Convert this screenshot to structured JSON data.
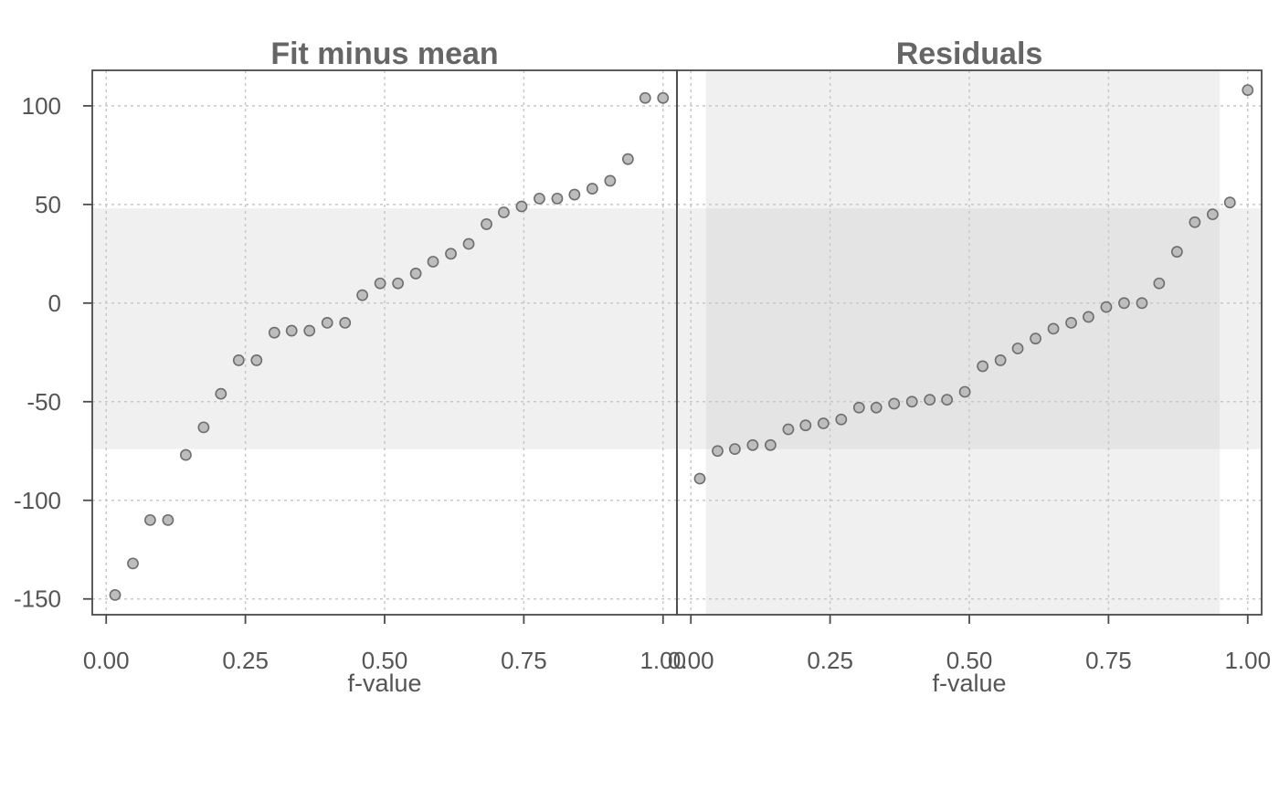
{
  "chart_data": [
    {
      "type": "scatter",
      "title": "Fit minus mean",
      "xlabel": "f-value",
      "ylabel": "",
      "xlim": [
        -0.025,
        1.025
      ],
      "ylim": [
        -158,
        118
      ],
      "xticks": [
        "0.00",
        "0.25",
        "0.50",
        "0.75",
        "1.00"
      ],
      "yticks": [
        "100",
        "50",
        "0",
        "-50",
        "-100",
        "-150"
      ],
      "grid": true,
      "point_color": "#bdbdbd",
      "band_color": "#f0f0f0",
      "band_y": [
        -74,
        48
      ],
      "x": [
        0.016,
        0.048,
        0.079,
        0.111,
        0.143,
        0.175,
        0.206,
        0.238,
        0.27,
        0.302,
        0.333,
        0.365,
        0.397,
        0.429,
        0.46,
        0.492,
        0.524,
        0.556,
        0.587,
        0.619,
        0.651,
        0.683,
        0.714,
        0.746,
        0.778,
        0.81,
        0.841,
        0.873,
        0.905,
        0.937,
        0.968,
        1.0
      ],
      "values": [
        -148,
        -132,
        -110,
        -110,
        -77,
        -63,
        -46,
        -29,
        -29,
        -15,
        -14,
        -14,
        -10,
        -10,
        4,
        10,
        10,
        15,
        21,
        25,
        30,
        40,
        46,
        49,
        53,
        53,
        55,
        58,
        62,
        73,
        104,
        104
      ]
    },
    {
      "type": "scatter",
      "title": "Residuals",
      "xlabel": "f-value",
      "ylabel": "",
      "xlim": [
        -0.025,
        1.025
      ],
      "ylim": [
        -158,
        118
      ],
      "xticks": [
        "0.00",
        "0.25",
        "0.50",
        "0.75",
        "1.00"
      ],
      "grid": true,
      "point_color": "#bdbdbd",
      "band_color": "#f0f0f0",
      "band_x": [
        0.027,
        0.95
      ],
      "overlap_color": "#e4e4e4",
      "x": [
        0.016,
        0.048,
        0.079,
        0.111,
        0.143,
        0.175,
        0.206,
        0.238,
        0.27,
        0.302,
        0.333,
        0.365,
        0.397,
        0.429,
        0.46,
        0.492,
        0.524,
        0.556,
        0.587,
        0.619,
        0.651,
        0.683,
        0.714,
        0.746,
        0.778,
        0.81,
        0.841,
        0.873,
        0.905,
        0.937,
        0.968,
        1.0
      ],
      "values": [
        -89,
        -75,
        -74,
        -72,
        -72,
        -64,
        -62,
        -61,
        -59,
        -53,
        -53,
        -51,
        -50,
        -49,
        -49,
        -45,
        -32,
        -29,
        -23,
        -18,
        -13,
        -10,
        -7,
        -2,
        0,
        0,
        10,
        26,
        41,
        45,
        51,
        108
      ]
    }
  ]
}
